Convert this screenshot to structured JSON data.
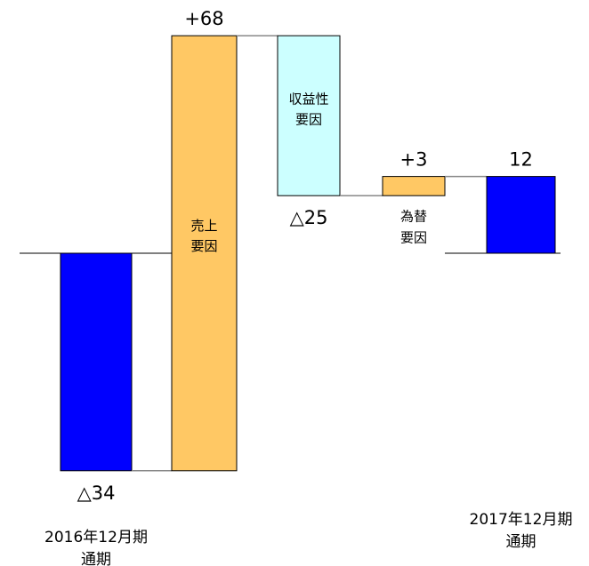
{
  "chart_data": {
    "type": "waterfall",
    "categories": [
      [
        "2016年12月期",
        "通期"
      ],
      [
        "売上",
        "要因"
      ],
      [
        "収益性",
        "要因"
      ],
      [
        "為替",
        "要因"
      ],
      [
        "2017年12月期",
        "通期"
      ]
    ],
    "values": [
      -34,
      68,
      -25,
      3,
      12
    ],
    "value_labels": [
      "△34",
      "+68",
      "△25",
      "+3",
      "12"
    ],
    "totals": [
      true,
      false,
      false,
      false,
      true
    ],
    "colors": [
      "#0000ff",
      "#ffc864",
      "#ccffff",
      "#ffc864",
      "#0000ff"
    ]
  }
}
